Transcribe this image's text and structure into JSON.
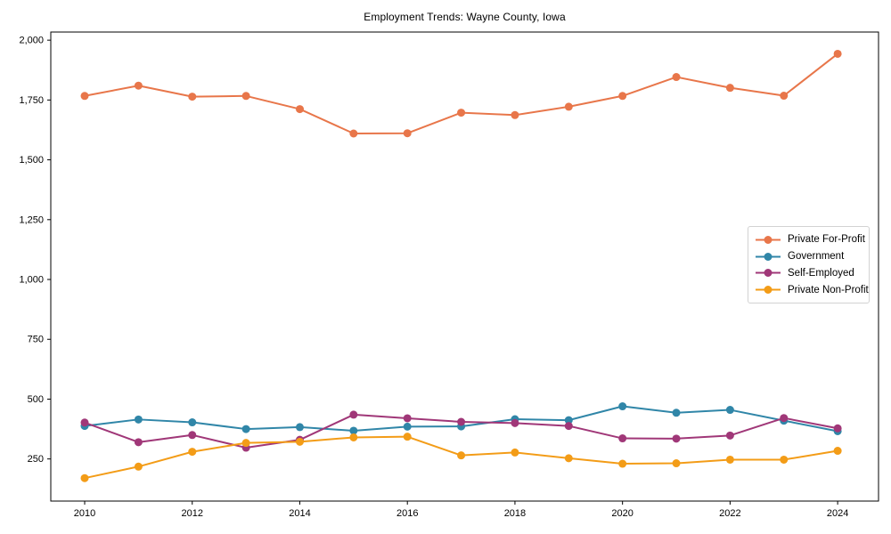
{
  "window": {
    "background": "#ffffff"
  },
  "chart_data": {
    "type": "line",
    "title": "Employment Trends: Wayne County, Iowa",
    "xlabel": "",
    "ylabel": "",
    "grid": false,
    "legend_position": "center-right",
    "background": "#ffffff",
    "axis_color": "#000000",
    "x": [
      2010,
      2011,
      2012,
      2013,
      2014,
      2015,
      2016,
      2017,
      2018,
      2019,
      2020,
      2021,
      2022,
      2023,
      2024
    ],
    "series": [
      {
        "name": "Private For-Profit",
        "color": "#e8764a",
        "values": [
          1767,
          1810,
          1764,
          1767,
          1712,
          1610,
          1611,
          1697,
          1687,
          1722,
          1767,
          1846,
          1801,
          1768,
          1943
        ]
      },
      {
        "name": "Government",
        "color": "#3086a8",
        "values": [
          388,
          415,
          403,
          375,
          383,
          368,
          385,
          386,
          416,
          412,
          470,
          443,
          455,
          410,
          366
        ]
      },
      {
        "name": "Self-Employed",
        "color": "#a03778",
        "values": [
          402,
          320,
          350,
          297,
          330,
          435,
          420,
          405,
          400,
          388,
          336,
          335,
          348,
          421,
          378
        ]
      },
      {
        "name": "Private Non-Profit",
        "color": "#f39c17",
        "values": [
          170,
          218,
          280,
          317,
          322,
          340,
          343,
          265,
          277,
          253,
          230,
          232,
          247,
          247,
          284
        ]
      }
    ],
    "xticks": {
      "values": [
        2010,
        2012,
        2014,
        2016,
        2018,
        2020,
        2022,
        2024
      ],
      "labels": [
        "2010",
        "2012",
        "2014",
        "2016",
        "2018",
        "2020",
        "2022",
        "2024"
      ]
    },
    "yticks": {
      "values": [
        250,
        500,
        750,
        1000,
        1250,
        1500,
        1750,
        2000
      ],
      "labels": [
        "250",
        "500",
        "750",
        "1,000",
        "1,250",
        "1,500",
        "1,750",
        "2,000"
      ]
    },
    "xlim": [
      2009.37,
      2024.76
    ],
    "ylim": [
      74,
      2034
    ]
  }
}
